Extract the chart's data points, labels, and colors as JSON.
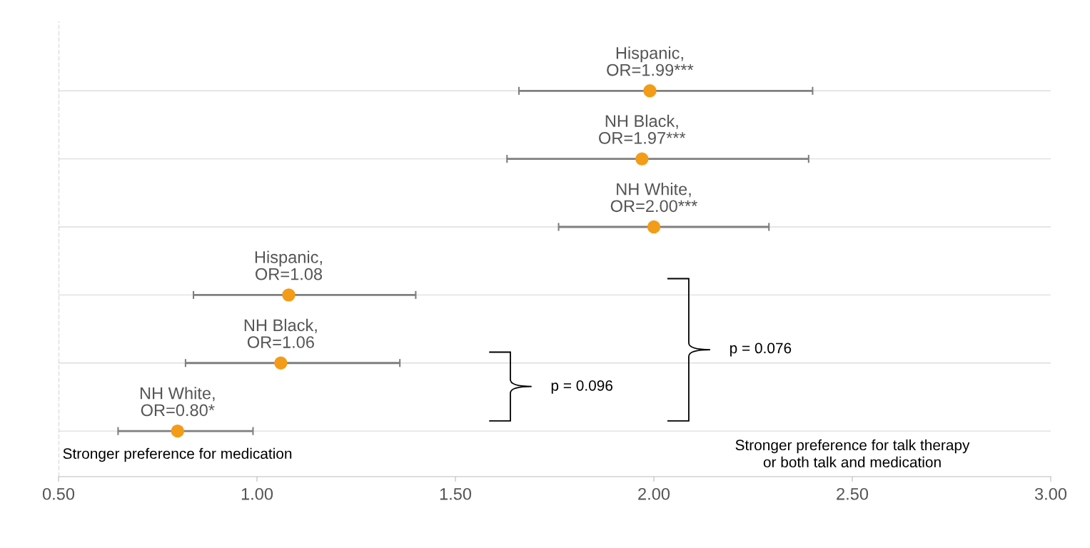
{
  "chart_data": {
    "type": "scatter",
    "orientation": "horizontal",
    "categories": [
      null,
      null,
      null,
      null,
      null,
      null
    ],
    "series": [
      {
        "color": "#f39c18",
        "values": [
          1.99,
          1.97,
          2.0,
          1.08,
          1.06,
          0.8
        ],
        "errors": [
          [
            1.66,
            2.4
          ],
          [
            1.63,
            2.39
          ],
          [
            1.76,
            2.29
          ],
          [
            0.84,
            1.4
          ],
          [
            0.82,
            1.36
          ],
          [
            0.65,
            0.99
          ]
        ],
        "value_labels": [
          "Hispanic,\nOR=1.99***",
          "NH Black,\nOR=1.97***",
          "NH White,\nOR=2.00***",
          "Hispanic,\nOR=1.08",
          "NH Black,\nOR=1.06",
          "NH White,\nOR=0.80*"
        ]
      }
    ],
    "xlim": [
      0.5,
      3.0
    ],
    "xticks": [
      {
        "value": 0.5,
        "label": "0.50"
      },
      {
        "value": 1.0,
        "label": "1.00"
      },
      {
        "value": 1.5,
        "label": "1.50"
      },
      {
        "value": 2.0,
        "label": "2.00"
      },
      {
        "value": 2.5,
        "label": "2.50"
      },
      {
        "value": 3.0,
        "label": "3.00"
      }
    ],
    "tick_labels": "x",
    "grid": "y",
    "marker": "circle",
    "ref_lines": [
      {
        "axis": "x",
        "value": 0.5,
        "line_style": "dashed",
        "color": "#cccccc"
      }
    ],
    "annotations": [
      "Stronger preference for medication",
      "Stronger preference for talk therapy\nor both talk and medication",
      "p = 0.096",
      "p = 0.076"
    ]
  }
}
